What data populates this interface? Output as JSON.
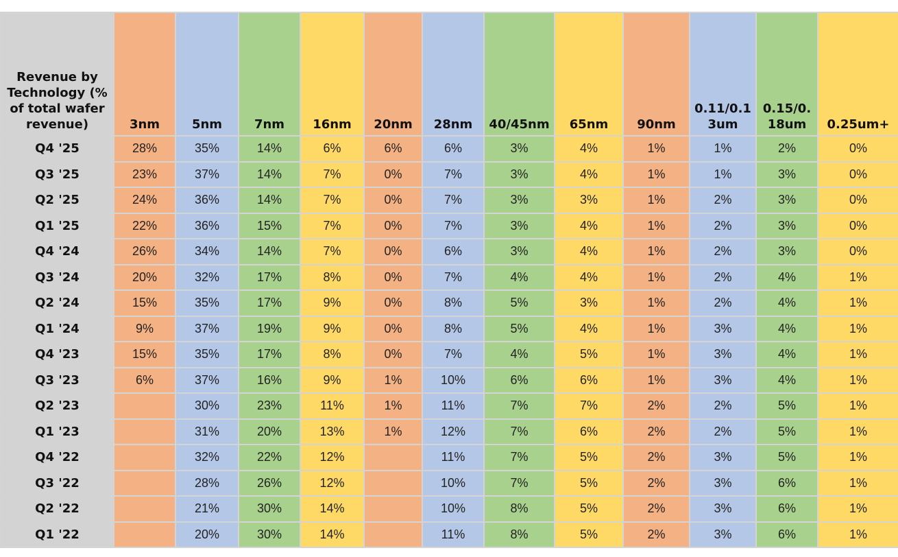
{
  "table": {
    "header": [
      "Revenue by Technology (% of total wafer revenue)",
      "3nm",
      "5nm",
      "7nm",
      "16nm",
      "20nm",
      "28nm",
      "40/45nm",
      "65nm",
      "90nm",
      "0.11/0.13um",
      "0.15/0.18um",
      "0.25um+"
    ],
    "rows": [
      [
        "Q4 '25",
        "28%",
        "35%",
        "14%",
        "6%",
        "6%",
        "6%",
        "3%",
        "4%",
        "1%",
        "1%",
        "2%",
        "0%"
      ],
      [
        "Q3 '25",
        "23%",
        "37%",
        "14%",
        "7%",
        "0%",
        "7%",
        "3%",
        "4%",
        "1%",
        "1%",
        "3%",
        "0%"
      ],
      [
        "Q2 '25",
        "24%",
        "36%",
        "14%",
        "7%",
        "0%",
        "7%",
        "3%",
        "3%",
        "1%",
        "2%",
        "3%",
        "0%"
      ],
      [
        "Q1 '25",
        "22%",
        "36%",
        "15%",
        "7%",
        "0%",
        "7%",
        "3%",
        "4%",
        "1%",
        "2%",
        "3%",
        "0%"
      ],
      [
        "Q4 '24",
        "26%",
        "34%",
        "14%",
        "7%",
        "0%",
        "6%",
        "3%",
        "4%",
        "1%",
        "2%",
        "3%",
        "0%"
      ],
      [
        "Q3 '24",
        "20%",
        "32%",
        "17%",
        "8%",
        "0%",
        "7%",
        "4%",
        "4%",
        "1%",
        "2%",
        "4%",
        "1%"
      ],
      [
        "Q2 '24",
        "15%",
        "35%",
        "17%",
        "9%",
        "0%",
        "8%",
        "5%",
        "3%",
        "1%",
        "2%",
        "4%",
        "1%"
      ],
      [
        "Q1 '24",
        "9%",
        "37%",
        "19%",
        "9%",
        "0%",
        "8%",
        "5%",
        "4%",
        "1%",
        "3%",
        "4%",
        "1%"
      ],
      [
        "Q4 '23",
        "15%",
        "35%",
        "17%",
        "8%",
        "0%",
        "7%",
        "4%",
        "5%",
        "1%",
        "3%",
        "4%",
        "1%"
      ],
      [
        "Q3 '23",
        "6%",
        "37%",
        "16%",
        "9%",
        "1%",
        "10%",
        "6%",
        "6%",
        "1%",
        "3%",
        "4%",
        "1%"
      ],
      [
        "Q2 '23",
        null,
        "30%",
        "23%",
        "11%",
        "1%",
        "11%",
        "7%",
        "7%",
        "2%",
        "2%",
        "5%",
        "1%"
      ],
      [
        "Q1 '23",
        null,
        "31%",
        "20%",
        "13%",
        "1%",
        "12%",
        "7%",
        "6%",
        "2%",
        "2%",
        "5%",
        "1%"
      ],
      [
        "Q4 '22",
        null,
        "32%",
        "22%",
        "12%",
        null,
        "11%",
        "7%",
        "5%",
        "2%",
        "3%",
        "5%",
        "1%"
      ],
      [
        "Q3 '22",
        null,
        "28%",
        "26%",
        "12%",
        null,
        "10%",
        "7%",
        "5%",
        "2%",
        "3%",
        "6%",
        "1%"
      ],
      [
        "Q2 '22",
        null,
        "21%",
        "30%",
        "14%",
        null,
        "10%",
        "8%",
        "5%",
        "2%",
        "3%",
        "6%",
        "1%"
      ],
      [
        "Q1 '22",
        null,
        "20%",
        "30%",
        "14%",
        null,
        "11%",
        "8%",
        "5%",
        "2%",
        "3%",
        "6%",
        "1%"
      ]
    ]
  }
}
